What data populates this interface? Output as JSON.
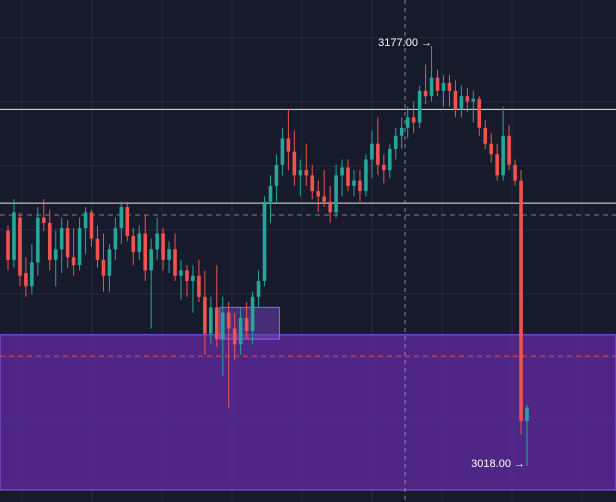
{
  "colors": {
    "background": "#161a2b",
    "grid": "#242a3d",
    "up": "#26a69a",
    "down": "#ef5350",
    "level_line": "#e8e8e8",
    "dashed_line": "#8a8f9c",
    "crosshair": "#9aa0aa",
    "zone_fill": "#5b2a9a",
    "zone_border": "#8b5cf6",
    "box_fill": "#6d3fb3",
    "box_border": "#a855f7",
    "label_text": "#ffffff"
  },
  "annotations": {
    "high_label": "3177.00 →",
    "low_label": "3018.00 →"
  },
  "chart_data": {
    "type": "candlestick",
    "title": "",
    "high": 3177.0,
    "low": 3018.0,
    "horizontal_levels": [
      3153.0,
      3117.5
    ],
    "dashed_levels": [
      3113.0,
      3059.5
    ],
    "demand_zone": [
      3018.0,
      3068.0
    ],
    "grid": true,
    "candles": [
      [
        3107,
        3109,
        3092,
        3096
      ],
      [
        3096,
        3119,
        3093,
        3114
      ],
      [
        3112,
        3114,
        3086,
        3090
      ],
      [
        3091,
        3097,
        3082,
        3086
      ],
      [
        3086,
        3102,
        3083,
        3095
      ],
      [
        3095,
        3116,
        3090,
        3112
      ],
      [
        3112,
        3119,
        3107,
        3110
      ],
      [
        3110,
        3115,
        3092,
        3096
      ],
      [
        3096,
        3107,
        3086,
        3100
      ],
      [
        3100,
        3112,
        3091,
        3108
      ],
      [
        3108,
        3111,
        3093,
        3097
      ],
      [
        3097,
        3108,
        3090,
        3094
      ],
      [
        3094,
        3112,
        3092,
        3108
      ],
      [
        3108,
        3116,
        3098,
        3114
      ],
      [
        3114,
        3115,
        3101,
        3104
      ],
      [
        3104,
        3109,
        3093,
        3096
      ],
      [
        3096,
        3106,
        3084,
        3090
      ],
      [
        3090,
        3102,
        3084,
        3100
      ],
      [
        3100,
        3112,
        3096,
        3108
      ],
      [
        3108,
        3118,
        3102,
        3116
      ],
      [
        3116,
        3118,
        3103,
        3105
      ],
      [
        3105,
        3108,
        3094,
        3099
      ],
      [
        3099,
        3109,
        3096,
        3106
      ],
      [
        3106,
        3113,
        3088,
        3092
      ],
      [
        3092,
        3104,
        3070,
        3100
      ],
      [
        3100,
        3112,
        3096,
        3106
      ],
      [
        3106,
        3108,
        3092,
        3096
      ],
      [
        3096,
        3103,
        3091,
        3100
      ],
      [
        3100,
        3106,
        3088,
        3090
      ],
      [
        3090,
        3096,
        3081,
        3092
      ],
      [
        3092,
        3094,
        3082,
        3088
      ],
      [
        3088,
        3094,
        3076,
        3090
      ],
      [
        3090,
        3096,
        3080,
        3082
      ],
      [
        3082,
        3092,
        3060,
        3068
      ],
      [
        3068,
        3082,
        3064,
        3078
      ],
      [
        3078,
        3094,
        3063,
        3066
      ],
      [
        3066,
        3082,
        3052,
        3076
      ],
      [
        3076,
        3080,
        3040,
        3070
      ],
      [
        3070,
        3076,
        3058,
        3064
      ],
      [
        3064,
        3078,
        3060,
        3074
      ],
      [
        3074,
        3080,
        3066,
        3069
      ],
      [
        3069,
        3084,
        3064,
        3082
      ],
      [
        3082,
        3092,
        3078,
        3088
      ],
      [
        3088,
        3120,
        3086,
        3118
      ],
      [
        3118,
        3128,
        3110,
        3124
      ],
      [
        3124,
        3136,
        3118,
        3132
      ],
      [
        3132,
        3146,
        3128,
        3142
      ],
      [
        3142,
        3153,
        3130,
        3137
      ],
      [
        3137,
        3145,
        3124,
        3128
      ],
      [
        3128,
        3134,
        3120,
        3130
      ],
      [
        3130,
        3140,
        3124,
        3128
      ],
      [
        3128,
        3132,
        3119,
        3122
      ],
      [
        3122,
        3126,
        3114,
        3120
      ],
      [
        3120,
        3130,
        3116,
        3118
      ],
      [
        3118,
        3124,
        3110,
        3114
      ],
      [
        3114,
        3132,
        3112,
        3128
      ],
      [
        3128,
        3134,
        3120,
        3131
      ],
      [
        3131,
        3134,
        3122,
        3124
      ],
      [
        3124,
        3130,
        3120,
        3126
      ],
      [
        3126,
        3130,
        3118,
        3122
      ],
      [
        3122,
        3136,
        3120,
        3134
      ],
      [
        3134,
        3145,
        3127,
        3140
      ],
      [
        3140,
        3150,
        3128,
        3132
      ],
      [
        3132,
        3136,
        3125,
        3130
      ],
      [
        3130,
        3140,
        3127,
        3138
      ],
      [
        3138,
        3146,
        3134,
        3143
      ],
      [
        3143,
        3150,
        3138,
        3146
      ],
      [
        3146,
        3154,
        3142,
        3150
      ],
      [
        3150,
        3156,
        3144,
        3148
      ],
      [
        3148,
        3162,
        3146,
        3160
      ],
      [
        3160,
        3170,
        3155,
        3158
      ],
      [
        3158,
        3177,
        3156,
        3165
      ],
      [
        3165,
        3168,
        3158,
        3160
      ],
      [
        3160,
        3166,
        3154,
        3163
      ],
      [
        3163,
        3166,
        3154,
        3160
      ],
      [
        3160,
        3164,
        3150,
        3153
      ],
      [
        3153,
        3162,
        3150,
        3158
      ],
      [
        3158,
        3161,
        3152,
        3156
      ],
      [
        3156,
        3160,
        3148,
        3157
      ],
      [
        3157,
        3158,
        3143,
        3146
      ],
      [
        3146,
        3149,
        3138,
        3140
      ],
      [
        3140,
        3144,
        3133,
        3136
      ],
      [
        3136,
        3140,
        3126,
        3128
      ],
      [
        3128,
        3154,
        3126,
        3143
      ],
      [
        3143,
        3147,
        3130,
        3132
      ],
      [
        3132,
        3134,
        3124,
        3126
      ],
      [
        3126,
        3130,
        3030,
        3035
      ],
      [
        3035,
        3041,
        3018,
        3040
      ]
    ]
  }
}
